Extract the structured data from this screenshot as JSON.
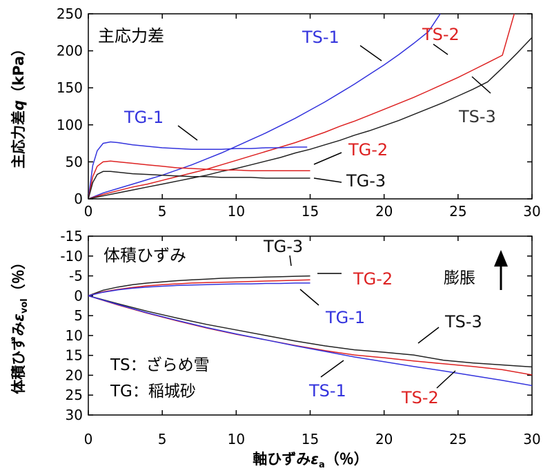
{
  "chart_data": [
    {
      "type": "line",
      "title": "主応力差",
      "ylabel_main": "主応力差",
      "ylabel_symbol": "q",
      "ylabel_unit": "（kPa）",
      "xlim": [
        0,
        30
      ],
      "ylim": [
        0,
        250
      ],
      "x_ticks": [
        0,
        5,
        10,
        15,
        20,
        25,
        30
      ],
      "y_ticks": [
        0,
        50,
        100,
        150,
        200,
        250
      ],
      "series": [
        {
          "name": "TS-1",
          "color": "#3333dd",
          "x": [
            0,
            1,
            2,
            3,
            4,
            5,
            6,
            7,
            8,
            9,
            10,
            11,
            12,
            13,
            14,
            15,
            16,
            17,
            18,
            19,
            20,
            21,
            22,
            23,
            23.8
          ],
          "y": [
            0,
            8,
            14,
            20,
            26,
            32,
            39,
            46,
            54,
            62,
            71,
            80,
            89,
            99,
            109,
            120,
            131,
            143,
            155,
            168,
            181,
            195,
            210,
            226,
            250
          ]
        },
        {
          "name": "TS-2",
          "color": "#dd2222",
          "x": [
            0,
            1,
            2,
            3,
            4,
            5,
            6,
            7,
            8,
            9,
            10,
            11,
            12,
            13,
            14,
            15,
            16,
            17,
            18,
            19,
            20,
            21,
            22,
            23,
            24,
            25,
            26,
            27,
            28,
            28.8
          ],
          "y": [
            0,
            6,
            11,
            16,
            20,
            25,
            30,
            35,
            40,
            46,
            52,
            58,
            64,
            70,
            76,
            83,
            90,
            98,
            105,
            113,
            121,
            129,
            137,
            146,
            155,
            164,
            174,
            184,
            194,
            250
          ]
        },
        {
          "name": "TS-3",
          "color": "#222222",
          "x": [
            0,
            1,
            2,
            3,
            4,
            5,
            6,
            7,
            8,
            9,
            10,
            11,
            12,
            13,
            14,
            15,
            16,
            17,
            18,
            19,
            20,
            21,
            22,
            23,
            24,
            25,
            26,
            27,
            28,
            29,
            30
          ],
          "y": [
            0,
            4,
            8,
            12,
            16,
            20,
            24,
            28,
            32,
            37,
            41,
            46,
            51,
            56,
            62,
            67,
            73,
            79,
            86,
            92,
            99,
            106,
            114,
            122,
            130,
            139,
            148,
            158,
            177,
            197,
            218
          ]
        },
        {
          "name": "TG-1",
          "color": "#3333dd",
          "x": [
            0,
            0.3,
            0.6,
            1.0,
            1.5,
            2,
            3,
            4,
            5,
            6,
            7,
            8,
            9,
            10,
            11,
            12,
            13,
            14,
            14.8
          ],
          "y": [
            0,
            45,
            65,
            75,
            77,
            76,
            73,
            71,
            69,
            68,
            67,
            67,
            67,
            68,
            68,
            69,
            69,
            70,
            70
          ]
        },
        {
          "name": "TG-2",
          "color": "#dd2222",
          "x": [
            0,
            0.3,
            0.6,
            1.0,
            1.5,
            2,
            3,
            4,
            5,
            6,
            7,
            8,
            9,
            10,
            11,
            12,
            13,
            14,
            15
          ],
          "y": [
            0,
            30,
            44,
            50,
            51,
            50,
            48,
            46,
            44,
            42,
            41,
            40,
            39,
            39,
            38,
            38,
            38,
            38,
            38
          ]
        },
        {
          "name": "TG-3",
          "color": "#222222",
          "x": [
            0,
            0.3,
            0.6,
            1.0,
            1.5,
            2,
            3,
            4,
            5,
            6,
            7,
            8,
            9,
            10,
            11,
            12,
            13,
            14,
            15
          ],
          "y": [
            0,
            22,
            33,
            37,
            37,
            36,
            34,
            33,
            32,
            31,
            30,
            30,
            29,
            29,
            29,
            28,
            28,
            28,
            28
          ]
        }
      ]
    },
    {
      "type": "line",
      "title": "体積ひずみ",
      "ylabel_main": "体積ひずみ",
      "ylabel_symbol": "ε",
      "ylabel_subscript": "vol",
      "ylabel_unit": "（％）",
      "xlabel_main": "軸ひずみ",
      "xlabel_symbol": "ε",
      "xlabel_subscript": "a",
      "xlabel_unit": "（％）",
      "xlim": [
        0,
        30
      ],
      "ylim": [
        -15,
        30
      ],
      "y_inverted": true,
      "x_ticks": [
        0,
        5,
        10,
        15,
        20,
        25,
        30
      ],
      "y_ticks": [
        -15,
        -10,
        -5,
        0,
        5,
        10,
        15,
        20,
        25,
        30
      ],
      "series": [
        {
          "name": "TG-3",
          "color": "#222222",
          "x": [
            0,
            1,
            2,
            3,
            4,
            5,
            6,
            7,
            8,
            9,
            10,
            11,
            12,
            13,
            14,
            15
          ],
          "y": [
            0,
            -1.4,
            -2.2,
            -2.8,
            -3.2,
            -3.5,
            -3.8,
            -4.0,
            -4.2,
            -4.4,
            -4.5,
            -4.6,
            -4.7,
            -4.8,
            -4.9,
            -5.0
          ]
        },
        {
          "name": "TG-2",
          "color": "#dd2222",
          "x": [
            0,
            1,
            2,
            3,
            4,
            5,
            6,
            7,
            8,
            9,
            10,
            11,
            12,
            13,
            14,
            15
          ],
          "y": [
            0,
            -1.0,
            -1.6,
            -2.1,
            -2.5,
            -2.8,
            -3.0,
            -3.2,
            -3.3,
            -3.4,
            -3.5,
            -3.6,
            -3.7,
            -3.8,
            -3.9,
            -4.0
          ]
        },
        {
          "name": "TG-1",
          "color": "#3333dd",
          "x": [
            0,
            1,
            2,
            3,
            4,
            5,
            6,
            7,
            8,
            9,
            10,
            11,
            12,
            13,
            14,
            15
          ],
          "y": [
            0,
            -0.9,
            -1.5,
            -1.9,
            -2.2,
            -2.4,
            -2.6,
            -2.7,
            -2.8,
            -2.9,
            -3.0,
            -3.0,
            -3.1,
            -3.1,
            -3.2,
            -3.2
          ]
        },
        {
          "name": "TS-3",
          "color": "#222222",
          "x": [
            0,
            2,
            4,
            6,
            8,
            10,
            12,
            14,
            16,
            18,
            20,
            22,
            24,
            26,
            28,
            30
          ],
          "y": [
            0,
            2.0,
            3.9,
            5.6,
            7.2,
            8.6,
            10.0,
            11.4,
            12.6,
            13.6,
            14.2,
            14.9,
            16.2,
            16.9,
            17.4,
            17.9
          ]
        },
        {
          "name": "TS-2",
          "color": "#dd2222",
          "x": [
            0,
            2,
            4,
            6,
            8,
            10,
            12,
            14,
            16,
            18,
            20,
            22,
            24,
            26,
            28,
            30
          ],
          "y": [
            0,
            2.3,
            4.4,
            6.3,
            8.1,
            9.7,
            11.1,
            12.5,
            13.8,
            14.9,
            15.6,
            16.4,
            17.1,
            17.8,
            18.6,
            19.9
          ]
        },
        {
          "name": "TS-1",
          "color": "#3333dd",
          "x": [
            0,
            2,
            4,
            6,
            8,
            10,
            12,
            14,
            16,
            18,
            20,
            22,
            24,
            26,
            28,
            30
          ],
          "y": [
            0,
            2.2,
            4.3,
            6.2,
            8.0,
            9.6,
            11.1,
            12.6,
            14.0,
            15.4,
            16.6,
            17.8,
            18.9,
            20.1,
            21.3,
            22.6
          ]
        }
      ],
      "annotations": {
        "swelling_label": "膨脹",
        "legend_note": [
          {
            "code": "TS",
            "desc": "：ざらめ雪"
          },
          {
            "code": "TG",
            "desc": "：稲城砂"
          }
        ]
      }
    }
  ]
}
